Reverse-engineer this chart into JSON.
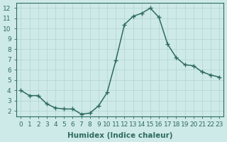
{
  "x": [
    0,
    1,
    2,
    3,
    4,
    5,
    6,
    7,
    8,
    9,
    10,
    11,
    12,
    13,
    14,
    15,
    16,
    17,
    18,
    19,
    20,
    21,
    22,
    23
  ],
  "y": [
    4.0,
    3.5,
    3.5,
    2.7,
    2.3,
    2.2,
    2.2,
    1.7,
    1.8,
    2.5,
    3.8,
    6.9,
    10.4,
    11.2,
    11.5,
    12.0,
    11.1,
    8.5,
    7.2,
    6.5,
    6.4,
    5.8,
    5.5,
    5.3
  ],
  "line_color": "#2e6b5e",
  "marker": "+",
  "marker_size": 4,
  "marker_lw": 1.0,
  "bg_color": "#ceeae8",
  "grid_color": "#b0d4d0",
  "xlabel": "Humidex (Indice chaleur)",
  "ylim": [
    1.5,
    12.5
  ],
  "xlim": [
    -0.5,
    23.5
  ],
  "yticks": [
    2,
    3,
    4,
    5,
    6,
    7,
    8,
    9,
    10,
    11,
    12
  ],
  "xticks": [
    0,
    1,
    2,
    3,
    4,
    5,
    6,
    7,
    8,
    9,
    10,
    11,
    12,
    13,
    14,
    15,
    16,
    17,
    18,
    19,
    20,
    21,
    22,
    23
  ],
  "tick_label_fontsize": 6.5,
  "xlabel_fontsize": 7.5,
  "label_color": "#2e6b5e",
  "axis_color": "#2e6b5e",
  "linewidth": 1.1
}
